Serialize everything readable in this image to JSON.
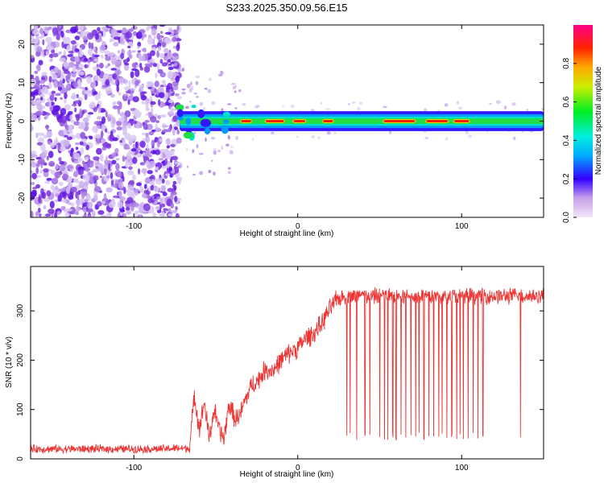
{
  "figure": {
    "title": "S233.2025.350.09.56.E15"
  },
  "chart_data": [
    {
      "type": "heatmap",
      "id": "spectrogram",
      "xlabel": "Height of straight line (km)",
      "ylabel": "Frequency (Hz)",
      "xlim": [
        -163,
        150
      ],
      "ylim": [
        -25,
        25
      ],
      "xticks": [
        -100,
        0,
        100
      ],
      "yticks": [
        -20,
        -10,
        0,
        10,
        20
      ],
      "colorbar": {
        "label": "Normalized spectral amplitude",
        "range": [
          0,
          1
        ],
        "ticks": [
          0.0,
          0.2,
          0.4,
          0.6,
          0.8
        ]
      },
      "regions": {
        "noise_x_range": [
          -163,
          -72
        ],
        "signal_onset_km": -72,
        "scatter_gap_km": [
          -72,
          -35
        ]
      },
      "signal_ridge": {
        "frequency_hz": 0,
        "peak_segments_km": [
          [
            -35,
            -28
          ],
          [
            -20,
            -8
          ],
          [
            -3,
            5
          ],
          [
            15,
            22
          ],
          [
            52,
            72
          ],
          [
            78,
            92
          ],
          [
            95,
            105
          ]
        ]
      }
    },
    {
      "type": "line",
      "id": "snr",
      "xlabel": "Height of straight line (km)",
      "ylabel": "SNR (10 * v/v)",
      "xlim": [
        -163,
        150
      ],
      "ylim": [
        0,
        390
      ],
      "xticks": [
        -100,
        0,
        100
      ],
      "yticks": [
        0,
        100,
        200,
        300
      ],
      "color": "#ee3333",
      "series": [
        {
          "name": "SNR",
          "x": [
            -163,
            -140,
            -120,
            -100,
            -85,
            -66,
            -63,
            -60,
            -57,
            -54,
            -51,
            -48,
            -45,
            -42,
            -38,
            -35,
            -32,
            -28,
            -24,
            -20,
            -15,
            -10,
            -5,
            0,
            5,
            10,
            15,
            18,
            22,
            25,
            30,
            40,
            50,
            60,
            70,
            80,
            90,
            100,
            110,
            120,
            130,
            140,
            150
          ],
          "values": [
            20,
            20,
            20,
            20,
            20,
            22,
            130,
            60,
            115,
            40,
            100,
            60,
            40,
            110,
            80,
            90,
            120,
            150,
            160,
            180,
            180,
            200,
            215,
            225,
            245,
            255,
            275,
            295,
            315,
            325,
            330,
            330,
            330,
            330,
            330,
            330,
            330,
            330,
            330,
            330,
            330,
            330,
            330
          ]
        }
      ],
      "dropouts_km": [
        30,
        32,
        36,
        41,
        44,
        50,
        53,
        55,
        58,
        60,
        63,
        66,
        69,
        72,
        74,
        77,
        80,
        83,
        86,
        88,
        91,
        94,
        97,
        99,
        101,
        104,
        107,
        110,
        113,
        136
      ]
    }
  ]
}
